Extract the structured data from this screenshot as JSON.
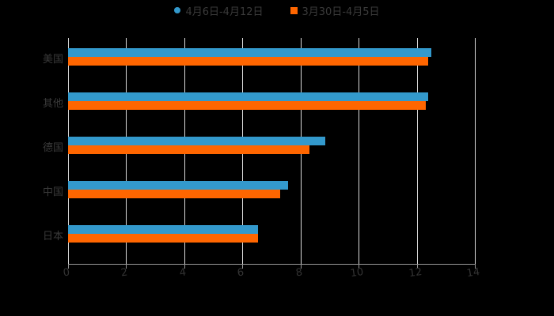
{
  "chart_data": {
    "type": "bar",
    "orientation": "horizontal",
    "title": "",
    "xlabel": "",
    "ylabel": "",
    "categories": [
      "美国",
      "其他",
      "德国",
      "中国",
      "日本"
    ],
    "series": [
      {
        "name": "4月6日-4月12日",
        "color": "#3399cc",
        "values": [
          12.5,
          12.4,
          8.85,
          7.57,
          6.54
        ]
      },
      {
        "name": "3月30日-4月5日",
        "color": "#ff6600",
        "values": [
          12.4,
          12.3,
          8.31,
          7.3,
          6.54
        ]
      }
    ],
    "xlim": [
      0,
      14
    ],
    "xticks": [
      "0",
      "2",
      "4",
      "6",
      "8",
      "10",
      "12",
      "14"
    ],
    "grid": true,
    "legend_position": "top"
  },
  "legend": {
    "s1": "4月6日-4月12日",
    "s2": "3月30日-4月5日"
  }
}
